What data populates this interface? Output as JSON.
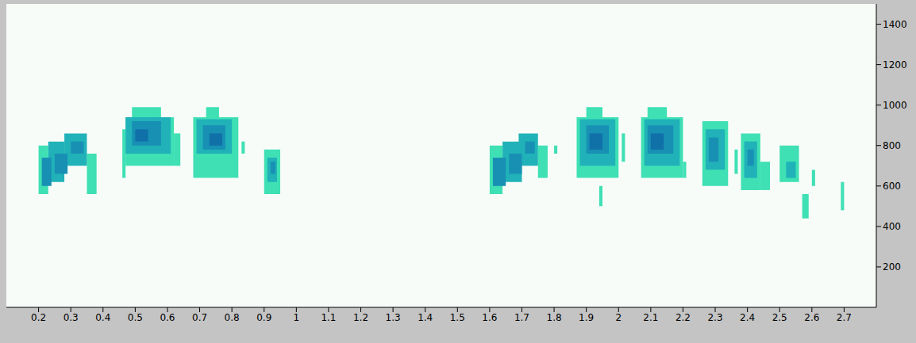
{
  "chart_data": {
    "type": "heatmap",
    "xlim": [
      0.1,
      2.8
    ],
    "xticks": [
      0.2,
      0.3,
      0.4,
      0.5,
      0.6,
      0.7,
      0.8,
      0.9,
      1.0,
      1.1,
      1.2,
      1.3,
      1.4,
      1.5,
      1.6,
      1.7,
      1.8,
      1.9,
      2.0,
      2.1,
      2.2,
      2.3,
      2.4,
      2.5,
      2.6,
      2.7
    ],
    "ylim": [
      0,
      1500
    ],
    "yticks": [
      200,
      400,
      600,
      800,
      1000,
      1200,
      1400
    ],
    "grid": false,
    "levels": [
      1,
      2,
      3,
      4
    ],
    "colors": [
      "#3ee0b4",
      "#20b2b8",
      "#1890b4",
      "#1070a8"
    ],
    "cells": [
      {
        "x0": 0.2,
        "x1": 0.23,
        "y0": 560,
        "y1": 800,
        "level": 1
      },
      {
        "x0": 0.21,
        "x1": 0.24,
        "y0": 600,
        "y1": 740,
        "level": 3
      },
      {
        "x0": 0.23,
        "x1": 0.28,
        "y0": 620,
        "y1": 820,
        "level": 2
      },
      {
        "x0": 0.25,
        "x1": 0.29,
        "y0": 660,
        "y1": 760,
        "level": 3
      },
      {
        "x0": 0.28,
        "x1": 0.35,
        "y0": 700,
        "y1": 860,
        "level": 2
      },
      {
        "x0": 0.3,
        "x1": 0.34,
        "y0": 760,
        "y1": 820,
        "level": 3
      },
      {
        "x0": 0.35,
        "x1": 0.38,
        "y0": 560,
        "y1": 760,
        "level": 1
      },
      {
        "x0": 0.46,
        "x1": 0.47,
        "y0": 640,
        "y1": 880,
        "level": 1
      },
      {
        "x0": 0.47,
        "x1": 0.62,
        "y0": 700,
        "y1": 940,
        "level": 1
      },
      {
        "x0": 0.49,
        "x1": 0.58,
        "y0": 940,
        "y1": 990,
        "level": 1
      },
      {
        "x0": 0.47,
        "x1": 0.61,
        "y0": 760,
        "y1": 940,
        "level": 2
      },
      {
        "x0": 0.49,
        "x1": 0.58,
        "y0": 800,
        "y1": 920,
        "level": 3
      },
      {
        "x0": 0.5,
        "x1": 0.54,
        "y0": 820,
        "y1": 880,
        "level": 4
      },
      {
        "x0": 0.62,
        "x1": 0.64,
        "y0": 700,
        "y1": 860,
        "level": 1
      },
      {
        "x0": 0.68,
        "x1": 0.82,
        "y0": 640,
        "y1": 940,
        "level": 1
      },
      {
        "x0": 0.72,
        "x1": 0.76,
        "y0": 940,
        "y1": 990,
        "level": 1
      },
      {
        "x0": 0.69,
        "x1": 0.8,
        "y0": 760,
        "y1": 930,
        "level": 2
      },
      {
        "x0": 0.71,
        "x1": 0.78,
        "y0": 780,
        "y1": 900,
        "level": 3
      },
      {
        "x0": 0.73,
        "x1": 0.77,
        "y0": 800,
        "y1": 860,
        "level": 4
      },
      {
        "x0": 0.83,
        "x1": 0.84,
        "y0": 760,
        "y1": 820,
        "level": 1
      },
      {
        "x0": 0.9,
        "x1": 0.95,
        "y0": 560,
        "y1": 780,
        "level": 1
      },
      {
        "x0": 0.91,
        "x1": 0.94,
        "y0": 620,
        "y1": 740,
        "level": 2
      },
      {
        "x0": 0.92,
        "x1": 0.935,
        "y0": 660,
        "y1": 720,
        "level": 3
      },
      {
        "x0": 1.6,
        "x1": 1.64,
        "y0": 560,
        "y1": 800,
        "level": 1
      },
      {
        "x0": 1.61,
        "x1": 1.65,
        "y0": 600,
        "y1": 740,
        "level": 3
      },
      {
        "x0": 1.64,
        "x1": 1.7,
        "y0": 620,
        "y1": 820,
        "level": 2
      },
      {
        "x0": 1.66,
        "x1": 1.7,
        "y0": 660,
        "y1": 760,
        "level": 3
      },
      {
        "x0": 1.69,
        "x1": 1.75,
        "y0": 700,
        "y1": 860,
        "level": 2
      },
      {
        "x0": 1.71,
        "x1": 1.74,
        "y0": 760,
        "y1": 820,
        "level": 3
      },
      {
        "x0": 1.75,
        "x1": 1.78,
        "y0": 640,
        "y1": 800,
        "level": 1
      },
      {
        "x0": 1.8,
        "x1": 1.81,
        "y0": 760,
        "y1": 800,
        "level": 1
      },
      {
        "x0": 1.87,
        "x1": 2.0,
        "y0": 640,
        "y1": 940,
        "level": 1
      },
      {
        "x0": 1.9,
        "x1": 1.95,
        "y0": 940,
        "y1": 990,
        "level": 1
      },
      {
        "x0": 1.88,
        "x1": 1.99,
        "y0": 700,
        "y1": 930,
        "level": 2
      },
      {
        "x0": 1.9,
        "x1": 1.97,
        "y0": 760,
        "y1": 900,
        "level": 3
      },
      {
        "x0": 1.91,
        "x1": 1.95,
        "y0": 780,
        "y1": 860,
        "level": 4
      },
      {
        "x0": 2.01,
        "x1": 2.02,
        "y0": 720,
        "y1": 860,
        "level": 1
      },
      {
        "x0": 1.94,
        "x1": 1.95,
        "y0": 500,
        "y1": 600,
        "level": 1
      },
      {
        "x0": 2.07,
        "x1": 2.2,
        "y0": 640,
        "y1": 940,
        "level": 1
      },
      {
        "x0": 2.09,
        "x1": 2.15,
        "y0": 940,
        "y1": 990,
        "level": 1
      },
      {
        "x0": 2.08,
        "x1": 2.19,
        "y0": 700,
        "y1": 930,
        "level": 2
      },
      {
        "x0": 2.09,
        "x1": 2.17,
        "y0": 760,
        "y1": 900,
        "level": 3
      },
      {
        "x0": 2.1,
        "x1": 2.14,
        "y0": 780,
        "y1": 860,
        "level": 4
      },
      {
        "x0": 2.2,
        "x1": 2.21,
        "y0": 640,
        "y1": 720,
        "level": 1
      },
      {
        "x0": 2.26,
        "x1": 2.34,
        "y0": 600,
        "y1": 920,
        "level": 1
      },
      {
        "x0": 2.27,
        "x1": 2.33,
        "y0": 680,
        "y1": 880,
        "level": 2
      },
      {
        "x0": 2.28,
        "x1": 2.31,
        "y0": 720,
        "y1": 840,
        "level": 3
      },
      {
        "x0": 2.36,
        "x1": 2.37,
        "y0": 660,
        "y1": 780,
        "level": 1
      },
      {
        "x0": 2.38,
        "x1": 2.44,
        "y0": 580,
        "y1": 860,
        "level": 1
      },
      {
        "x0": 2.39,
        "x1": 2.43,
        "y0": 640,
        "y1": 820,
        "level": 2
      },
      {
        "x0": 2.4,
        "x1": 2.42,
        "y0": 700,
        "y1": 780,
        "level": 3
      },
      {
        "x0": 2.44,
        "x1": 2.47,
        "y0": 580,
        "y1": 720,
        "level": 1
      },
      {
        "x0": 2.5,
        "x1": 2.56,
        "y0": 620,
        "y1": 800,
        "level": 1
      },
      {
        "x0": 2.52,
        "x1": 2.55,
        "y0": 640,
        "y1": 720,
        "level": 2
      },
      {
        "x0": 2.57,
        "x1": 2.59,
        "y0": 440,
        "y1": 560,
        "level": 1
      },
      {
        "x0": 2.6,
        "x1": 2.61,
        "y0": 600,
        "y1": 680,
        "level": 1
      },
      {
        "x0": 2.69,
        "x1": 2.7,
        "y0": 480,
        "y1": 620,
        "level": 1
      }
    ]
  }
}
